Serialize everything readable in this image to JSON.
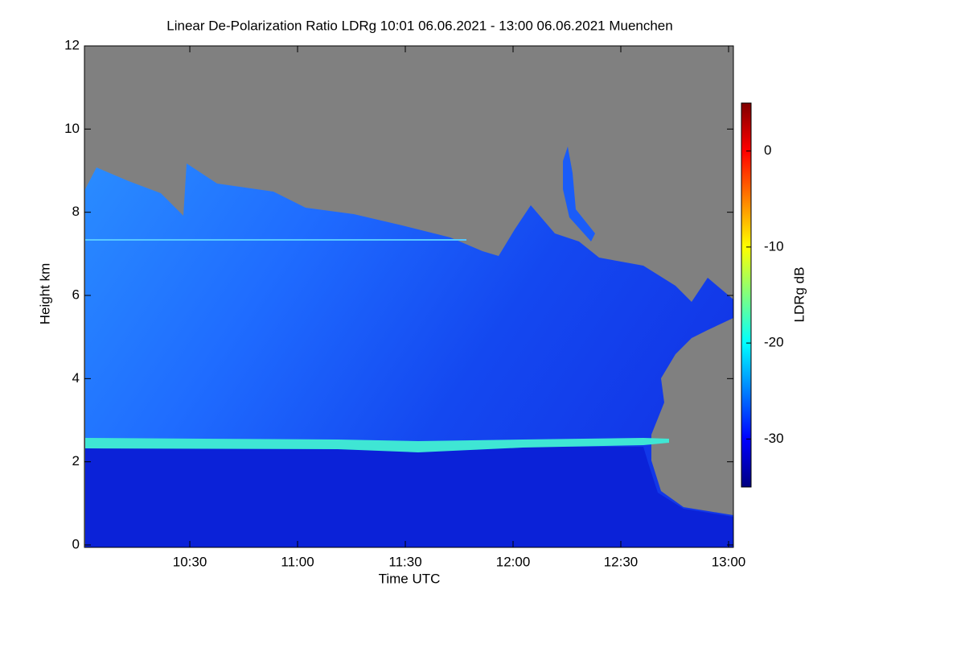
{
  "chart_data": {
    "type": "heatmap",
    "title": "Linear De-Polarization Ratio LDRg   10:01 06.06.2021 - 13:00 06.06.2021 Muenchen",
    "x_label": "Time UTC",
    "y_label": "Height km",
    "xlim": [
      "10:01",
      "13:00"
    ],
    "xticks": [
      "10:30",
      "11:00",
      "11:30",
      "12:00",
      "12:30",
      "13:00"
    ],
    "ylim": [
      0,
      12
    ],
    "yticks": [
      0,
      2,
      4,
      6,
      8,
      10,
      12
    ],
    "colorbar_label": "LDRg dB",
    "clim": [
      -35,
      5
    ],
    "cticks": [
      0,
      -10,
      -20,
      -30
    ],
    "colormap": "jet",
    "missing_color": "#808080"
  }
}
